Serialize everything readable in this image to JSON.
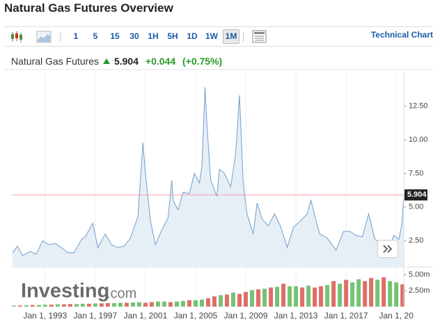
{
  "header": {
    "title": "Natural Gas Futures Overview"
  },
  "toolbar": {
    "intervals": [
      "1",
      "5",
      "15",
      "30",
      "1H",
      "5H",
      "1D",
      "1W",
      "1M"
    ],
    "active": 8,
    "technical": "Technical Chart"
  },
  "quote": {
    "name": "Natural Gas Futures",
    "change": "+0.044",
    "change_pct": "(+0.75%)"
  },
  "watermark": {
    "brand": "Investing",
    "suffix": ".com"
  },
  "chart_data": [
    {
      "type": "area",
      "color": "#6f9fcf",
      "fill": "#e6eef6",
      "grid": true,
      "x": [
        1990.4,
        1990.8,
        1991.2,
        1991.8,
        1992.3,
        1992.8,
        1993.3,
        1993.8,
        1994.3,
        1994.8,
        1995.3,
        1995.9,
        1996.2,
        1996.8,
        1997.2,
        1997.8,
        1998.3,
        1998.8,
        1999.3,
        1999.8,
        2000.4,
        2000.8,
        2001.0,
        2001.4,
        2001.8,
        2002.3,
        2002.8,
        2003.1,
        2003.2,
        2003.6,
        2004.0,
        2004.5,
        2004.9,
        2005.3,
        2005.5,
        2005.75,
        2005.9,
        2006.2,
        2006.7,
        2006.9,
        2007.3,
        2007.8,
        2008.2,
        2008.5,
        2008.8,
        2009.1,
        2009.6,
        2009.9,
        2010.3,
        2010.8,
        2011.3,
        2011.8,
        2012.3,
        2012.8,
        2013.4,
        2013.9,
        2014.2,
        2014.6,
        2014.9,
        2015.5,
        2016.2,
        2016.8,
        2017.3,
        2017.8,
        2018.3,
        2018.8,
        2019.3,
        2019.8,
        2020.3,
        2020.8,
        2021.2,
        2021.45,
        2021.6
      ],
      "values": [
        1.6,
        2.1,
        1.4,
        1.7,
        1.5,
        2.5,
        2.2,
        2.3,
        2.0,
        1.6,
        1.6,
        2.6,
        2.8,
        3.8,
        2.0,
        3.0,
        2.2,
        2.0,
        2.1,
        2.7,
        4.3,
        9.8,
        7.5,
        4.0,
        2.2,
        3.3,
        4.2,
        7.0,
        5.5,
        4.8,
        6.1,
        6.0,
        7.5,
        6.8,
        8.0,
        13.9,
        11.2,
        7.0,
        5.8,
        7.8,
        7.5,
        6.5,
        9.0,
        13.3,
        6.8,
        4.5,
        3.0,
        5.3,
        4.1,
        3.6,
        4.5,
        3.5,
        2.0,
        3.5,
        4.0,
        4.5,
        5.5,
        4.0,
        3.0,
        2.7,
        1.8,
        3.2,
        3.2,
        2.9,
        2.8,
        4.5,
        2.6,
        2.3,
        1.6,
        2.9,
        2.6,
        3.7,
        5.904
      ],
      "last_price": 5.904,
      "reference_color": "#f2a3a3",
      "xlim": [
        1990.4,
        2021.6
      ],
      "ylim": [
        0.6,
        14.6
      ],
      "yticks": [
        {
          "value": 2.5,
          "label": "2.50"
        },
        {
          "value": 5,
          "label": "5.00"
        },
        {
          "value": 7.5,
          "label": "7.50"
        },
        {
          "value": 10,
          "label": "10.00"
        },
        {
          "value": 12.5,
          "label": "12.50"
        }
      ],
      "xticks": [
        {
          "value": 1993,
          "label": "Jan 1, 1993"
        },
        {
          "value": 1997,
          "label": "Jan 1, 1997"
        },
        {
          "value": 2001,
          "label": "Jan 1, 2001"
        },
        {
          "value": 2005,
          "label": "Jan 1, 2005"
        },
        {
          "value": 2009,
          "label": "Jan 1, 2009"
        },
        {
          "value": 2013,
          "label": "Jan 1, 2013"
        },
        {
          "value": 2017,
          "label": "Jan 1, 2017"
        },
        {
          "value": 2021,
          "label": "Jan 1, 20"
        }
      ]
    },
    {
      "type": "bar",
      "x": [
        1990.5,
        1991,
        1991.5,
        1992,
        1992.5,
        1993,
        1993.5,
        1994,
        1994.5,
        1995,
        1995.5,
        1996,
        1996.5,
        1997,
        1997.5,
        1998,
        1998.5,
        1999,
        1999.5,
        2000,
        2000.5,
        2001,
        2001.5,
        2002,
        2002.5,
        2003,
        2003.5,
        2004,
        2004.5,
        2005,
        2005.5,
        2006,
        2006.5,
        2007,
        2007.5,
        2008,
        2008.5,
        2009,
        2009.5,
        2010,
        2010.5,
        2011,
        2011.5,
        2012,
        2012.5,
        2013,
        2013.5,
        2014,
        2014.5,
        2015,
        2015.5,
        2016,
        2016.5,
        2017,
        2017.5,
        2018,
        2018.5,
        2019,
        2019.5,
        2020,
        2020.5,
        2021,
        2021.5
      ],
      "values": [
        150000,
        180000,
        200000,
        250000,
        250000,
        300000,
        300000,
        350000,
        350000,
        400000,
        400000,
        450000,
        450000,
        500000,
        500000,
        550000,
        550000,
        600000,
        600000,
        650000,
        700000,
        600000,
        700000,
        800000,
        800000,
        700000,
        800000,
        900000,
        1000000,
        1000000,
        1100000,
        1300000,
        1600000,
        1800000,
        1900000,
        2200000,
        2000000,
        2300000,
        2600000,
        2700000,
        2800000,
        3000000,
        3100000,
        3600000,
        3200000,
        3200000,
        3000000,
        3300000,
        3000000,
        3200000,
        3400000,
        4000000,
        3600000,
        4200000,
        3800000,
        4300000,
        4000000,
        4500000,
        4200000,
        4600000,
        4000000,
        3800000,
        3500000
      ],
      "colors": [
        "#5cb85c",
        "#d9534f",
        "#5cb85c",
        "#d9534f",
        "#5cb85c",
        "#5cb85c",
        "#d9534f",
        "#5cb85c",
        "#d9534f",
        "#d9534f",
        "#5cb85c",
        "#5cb85c",
        "#d9534f",
        "#5cb85c",
        "#d9534f",
        "#d9534f",
        "#5cb85c",
        "#5cb85c",
        "#d9534f",
        "#5cb85c",
        "#5cb85c",
        "#d9534f",
        "#d9534f",
        "#5cb85c",
        "#5cb85c",
        "#d9534f",
        "#5cb85c",
        "#5cb85c",
        "#d9534f",
        "#5cb85c",
        "#5cb85c",
        "#d9534f",
        "#d9534f",
        "#5cb85c",
        "#d9534f",
        "#5cb85c",
        "#d9534f",
        "#d9534f",
        "#5cb85c",
        "#d9534f",
        "#5cb85c",
        "#d9534f",
        "#5cb85c",
        "#d9534f",
        "#5cb85c",
        "#5cb85c",
        "#d9534f",
        "#5cb85c",
        "#d9534f",
        "#d9534f",
        "#5cb85c",
        "#d9534f",
        "#5cb85c",
        "#d9534f",
        "#5cb85c",
        "#5cb85c",
        "#d9534f",
        "#d9534f",
        "#5cb85c",
        "#d9534f",
        "#5cb85c",
        "#5cb85c",
        "#d9534f"
      ],
      "ylim": [
        0,
        6000000
      ],
      "yticks": [
        {
          "value": 2500000,
          "label": "2.50m"
        },
        {
          "value": 5000000,
          "label": "5.00m"
        }
      ]
    }
  ]
}
